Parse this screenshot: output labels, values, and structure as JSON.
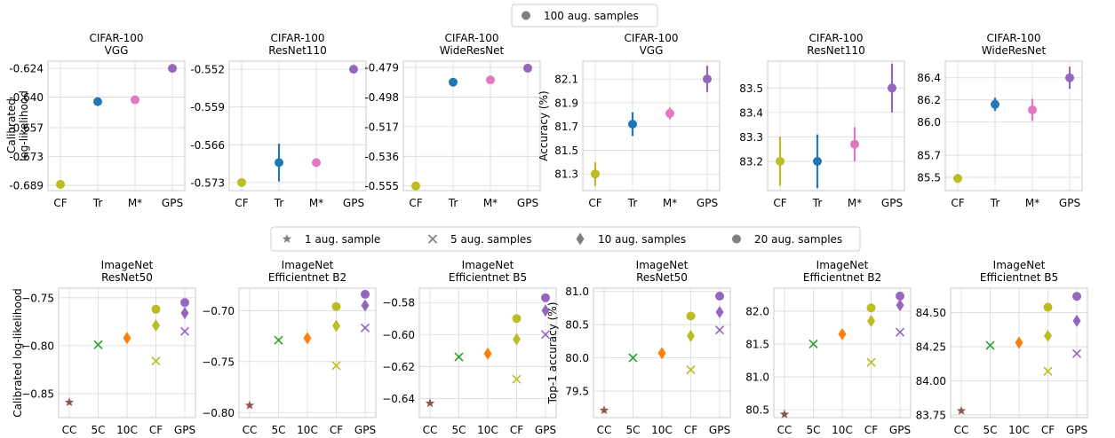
{
  "legend_top": {
    "entries": [
      {
        "label": "100 aug. samples",
        "marker": "circle",
        "color": "#7f7f7f"
      }
    ]
  },
  "legend_mid": {
    "entries": [
      {
        "label": "1 aug. sample",
        "marker": "star",
        "color": "#7f7f7f"
      },
      {
        "label": "5 aug. samples",
        "marker": "x",
        "color": "#7f7f7f"
      },
      {
        "label": "10 aug. samples",
        "marker": "diamond",
        "color": "#7f7f7f"
      },
      {
        "label": "20 aug. samples",
        "marker": "circle",
        "color": "#7f7f7f"
      }
    ]
  },
  "colors": {
    "CF": "#bcbd22",
    "Tr": "#1f77b4",
    "M*": "#e377c2",
    "GPS": "#9467bd",
    "CC": "#8c564b",
    "5C": "#2ca02c",
    "10C": "#ff7f0e",
    "grid": "#d9d9d9"
  },
  "chart_data": [
    {
      "type": "scatter",
      "title": "CIFAR-100",
      "subtitle": "VGG",
      "ylabel": "Calibrated\nlog-likelihood",
      "categories": [
        "CF",
        "Tr",
        "M*",
        "GPS"
      ],
      "yticks": [
        -0.689,
        -0.673,
        -0.657,
        -0.64,
        -0.624
      ],
      "yticklabels": [
        "-0.689",
        "-0.673",
        "-0.657",
        "-0.640",
        "-0.624"
      ],
      "ylim": [
        -0.692,
        -0.62
      ],
      "points": [
        {
          "x": "CF",
          "y": -0.6885,
          "err": 0,
          "marker": "circle",
          "color": "CF"
        },
        {
          "x": "Tr",
          "y": -0.6425,
          "err": 0.002,
          "marker": "circle",
          "color": "Tr"
        },
        {
          "x": "M*",
          "y": -0.6415,
          "err": 0,
          "marker": "circle",
          "color": "M*"
        },
        {
          "x": "GPS",
          "y": -0.624,
          "err": 0,
          "marker": "circle",
          "color": "GPS"
        }
      ]
    },
    {
      "type": "scatter",
      "title": "CIFAR-100",
      "subtitle": "ResNet110",
      "ylabel": "",
      "categories": [
        "CF",
        "Tr",
        "M*",
        "GPS"
      ],
      "yticks": [
        -0.573,
        -0.566,
        -0.559,
        -0.552
      ],
      "yticklabels": [
        "-0.573",
        "-0.566",
        "-0.559",
        "-0.552"
      ],
      "ylim": [
        -0.5745,
        -0.5505
      ],
      "points": [
        {
          "x": "CF",
          "y": -0.573,
          "err": 0,
          "marker": "circle",
          "color": "CF"
        },
        {
          "x": "Tr",
          "y": -0.5693,
          "err": 0.0035,
          "marker": "circle",
          "color": "Tr"
        },
        {
          "x": "M*",
          "y": -0.5693,
          "err": 0,
          "marker": "circle",
          "color": "M*"
        },
        {
          "x": "GPS",
          "y": -0.552,
          "err": 0,
          "marker": "circle",
          "color": "GPS"
        }
      ]
    },
    {
      "type": "scatter",
      "title": "CIFAR-100",
      "subtitle": "WideResNet",
      "ylabel": "",
      "categories": [
        "CF",
        "Tr",
        "M*",
        "GPS"
      ],
      "yticks": [
        -0.555,
        -0.536,
        -0.517,
        -0.498,
        -0.479
      ],
      "yticklabels": [
        "-0.555",
        "-0.536",
        "-0.517",
        "-0.498",
        "-0.479"
      ],
      "ylim": [
        -0.558,
        -0.475
      ],
      "points": [
        {
          "x": "CF",
          "y": -0.555,
          "err": 0,
          "marker": "circle",
          "color": "CF"
        },
        {
          "x": "Tr",
          "y": -0.4885,
          "err": 0,
          "marker": "circle",
          "color": "Tr"
        },
        {
          "x": "M*",
          "y": -0.487,
          "err": 0,
          "marker": "circle",
          "color": "M*"
        },
        {
          "x": "GPS",
          "y": -0.4795,
          "err": 0,
          "marker": "circle",
          "color": "GPS"
        }
      ]
    },
    {
      "type": "scatter",
      "title": "CIFAR-100",
      "subtitle": "VGG",
      "ylabel": "Accuracy (%)",
      "categories": [
        "CF",
        "Tr",
        "M*",
        "GPS"
      ],
      "yticks": [
        81.3,
        81.5,
        81.7,
        81.9,
        82.1
      ],
      "yticklabels": [
        "81.3",
        "81.5",
        "81.7",
        "81.9",
        "82.1"
      ],
      "ylim": [
        81.16,
        82.25
      ],
      "points": [
        {
          "x": "CF",
          "y": 81.3,
          "err": 0.1,
          "marker": "circle",
          "color": "CF"
        },
        {
          "x": "Tr",
          "y": 81.72,
          "err": 0.1,
          "marker": "circle",
          "color": "Tr"
        },
        {
          "x": "M*",
          "y": 81.81,
          "err": 0.05,
          "marker": "circle",
          "color": "M*"
        },
        {
          "x": "GPS",
          "y": 82.1,
          "err": 0.11,
          "marker": "circle",
          "color": "GPS"
        }
      ]
    },
    {
      "type": "scatter",
      "title": "CIFAR-100",
      "subtitle": "ResNet110",
      "ylabel": "",
      "categories": [
        "CF",
        "Tr",
        "M*",
        "GPS"
      ],
      "yticks": [
        83.2,
        83.3,
        83.4,
        83.5
      ],
      "yticklabels": [
        "83.2",
        "83.3",
        "83.4",
        "83.5"
      ],
      "ylim": [
        83.08,
        83.61
      ],
      "points": [
        {
          "x": "CF",
          "y": 83.2,
          "err": 0.1,
          "marker": "circle",
          "color": "CF"
        },
        {
          "x": "Tr",
          "y": 83.2,
          "err": 0.11,
          "marker": "circle",
          "color": "Tr"
        },
        {
          "x": "M*",
          "y": 83.27,
          "err": 0.07,
          "marker": "circle",
          "color": "M*"
        },
        {
          "x": "GPS",
          "y": 83.5,
          "err": 0.1,
          "marker": "circle",
          "color": "GPS"
        }
      ]
    },
    {
      "type": "scatter",
      "title": "CIFAR-100",
      "subtitle": "WideResNet",
      "ylabel": "",
      "categories": [
        "CF",
        "Tr",
        "M*",
        "GPS"
      ],
      "yticks": [
        85.5,
        85.7,
        86.0,
        86.2,
        86.4
      ],
      "yticklabels": [
        "85.5",
        "85.7",
        "86.0",
        "86.2",
        "86.4"
      ],
      "ylim": [
        85.38,
        86.55
      ],
      "points": [
        {
          "x": "CF",
          "y": 85.49,
          "err": 0.04,
          "marker": "circle",
          "color": "CF"
        },
        {
          "x": "Tr",
          "y": 86.16,
          "err": 0.06,
          "marker": "circle",
          "color": "Tr"
        },
        {
          "x": "M*",
          "y": 86.11,
          "err": 0.1,
          "marker": "circle",
          "color": "M*"
        },
        {
          "x": "GPS",
          "y": 86.4,
          "err": 0.1,
          "marker": "circle",
          "color": "GPS"
        }
      ]
    },
    {
      "type": "scatter",
      "title": "ImageNet",
      "subtitle": "ResNet50",
      "ylabel": "Calibrated log-likelihood",
      "categories": [
        "CC",
        "5C",
        "10C",
        "CF",
        "GPS"
      ],
      "yticks": [
        -0.85,
        -0.8,
        -0.75
      ],
      "yticklabels": [
        "−0.85",
        "−0.80",
        "−0.75"
      ],
      "ylim": [
        -0.875,
        -0.74
      ],
      "points": [
        {
          "x": "CC",
          "y": -0.859,
          "marker": "star",
          "color": "CC"
        },
        {
          "x": "5C",
          "y": -0.799,
          "marker": "x",
          "color": "5C"
        },
        {
          "x": "10C",
          "y": -0.792,
          "marker": "diamond",
          "color": "10C"
        },
        {
          "x": "CF",
          "y": -0.816,
          "marker": "x",
          "color": "CF"
        },
        {
          "x": "CF",
          "y": -0.779,
          "marker": "diamond",
          "color": "CF"
        },
        {
          "x": "CF",
          "y": -0.762,
          "marker": "circle",
          "color": "CF"
        },
        {
          "x": "GPS",
          "y": -0.785,
          "marker": "x",
          "color": "GPS"
        },
        {
          "x": "GPS",
          "y": -0.766,
          "marker": "diamond",
          "color": "GPS"
        },
        {
          "x": "GPS",
          "y": -0.755,
          "marker": "circle",
          "color": "GPS"
        }
      ]
    },
    {
      "type": "scatter",
      "title": "ImageNet",
      "subtitle": "Efficientnet B2",
      "ylabel": "",
      "categories": [
        "CC",
        "5C",
        "10C",
        "CF",
        "GPS"
      ],
      "yticks": [
        -0.8,
        -0.75,
        -0.7
      ],
      "yticklabels": [
        "−0.80",
        "−0.75",
        "−0.70"
      ],
      "ylim": [
        -0.805,
        -0.678
      ],
      "points": [
        {
          "x": "CC",
          "y": -0.793,
          "marker": "star",
          "color": "CC"
        },
        {
          "x": "5C",
          "y": -0.729,
          "marker": "x",
          "color": "5C"
        },
        {
          "x": "10C",
          "y": -0.727,
          "marker": "diamond",
          "color": "10C"
        },
        {
          "x": "CF",
          "y": -0.754,
          "marker": "x",
          "color": "CF"
        },
        {
          "x": "CF",
          "y": -0.715,
          "marker": "diamond",
          "color": "CF"
        },
        {
          "x": "CF",
          "y": -0.696,
          "marker": "circle",
          "color": "CF"
        },
        {
          "x": "GPS",
          "y": -0.717,
          "marker": "x",
          "color": "GPS"
        },
        {
          "x": "GPS",
          "y": -0.695,
          "marker": "diamond",
          "color": "GPS"
        },
        {
          "x": "GPS",
          "y": -0.684,
          "marker": "circle",
          "color": "GPS"
        }
      ]
    },
    {
      "type": "scatter",
      "title": "ImageNet",
      "subtitle": "Efficientnet B5",
      "ylabel": "",
      "categories": [
        "CC",
        "5C",
        "10C",
        "CF",
        "GPS"
      ],
      "yticks": [
        -0.64,
        -0.62,
        -0.6,
        -0.58
      ],
      "yticklabels": [
        "−0.64",
        "−0.62",
        "−0.60",
        "−0.58"
      ],
      "ylim": [
        -0.652,
        -0.571
      ],
      "points": [
        {
          "x": "CC",
          "y": -0.643,
          "marker": "star",
          "color": "CC"
        },
        {
          "x": "5C",
          "y": -0.614,
          "marker": "x",
          "color": "5C"
        },
        {
          "x": "10C",
          "y": -0.612,
          "marker": "diamond",
          "color": "10C"
        },
        {
          "x": "CF",
          "y": -0.628,
          "marker": "x",
          "color": "CF"
        },
        {
          "x": "CF",
          "y": -0.603,
          "marker": "diamond",
          "color": "CF"
        },
        {
          "x": "CF",
          "y": -0.59,
          "marker": "circle",
          "color": "CF"
        },
        {
          "x": "GPS",
          "y": -0.6,
          "marker": "x",
          "color": "GPS"
        },
        {
          "x": "GPS",
          "y": -0.585,
          "marker": "diamond",
          "color": "GPS"
        },
        {
          "x": "GPS",
          "y": -0.577,
          "marker": "circle",
          "color": "GPS"
        }
      ]
    },
    {
      "type": "scatter",
      "title": "ImageNet",
      "subtitle": "ResNet50",
      "ylabel": "Top-1 accuracy (%)",
      "categories": [
        "CC",
        "5C",
        "10C",
        "CF",
        "GPS"
      ],
      "yticks": [
        79.5,
        80.0,
        80.5,
        81.0
      ],
      "yticklabels": [
        "79.5",
        "80.0",
        "80.5",
        "81.0"
      ],
      "ylim": [
        79.1,
        81.05
      ],
      "points": [
        {
          "x": "CC",
          "y": 79.21,
          "marker": "star",
          "color": "CC"
        },
        {
          "x": "5C",
          "y": 80.0,
          "marker": "x",
          "color": "5C"
        },
        {
          "x": "10C",
          "y": 80.07,
          "marker": "diamond",
          "color": "10C"
        },
        {
          "x": "CF",
          "y": 79.82,
          "marker": "x",
          "color": "CF"
        },
        {
          "x": "CF",
          "y": 80.33,
          "marker": "diamond",
          "color": "CF"
        },
        {
          "x": "CF",
          "y": 80.63,
          "marker": "circle",
          "color": "CF"
        },
        {
          "x": "GPS",
          "y": 80.42,
          "marker": "x",
          "color": "GPS"
        },
        {
          "x": "GPS",
          "y": 80.69,
          "marker": "diamond",
          "color": "GPS"
        },
        {
          "x": "GPS",
          "y": 80.93,
          "marker": "circle",
          "color": "GPS"
        }
      ]
    },
    {
      "type": "scatter",
      "title": "ImageNet",
      "subtitle": "Efficientnet B2",
      "ylabel": "",
      "categories": [
        "CC",
        "5C",
        "10C",
        "CF",
        "GPS"
      ],
      "yticks": [
        80.5,
        81.0,
        81.5,
        82.0
      ],
      "yticklabels": [
        "80.5",
        "81.0",
        "81.5",
        "82.0"
      ],
      "ylim": [
        80.38,
        82.35
      ],
      "points": [
        {
          "x": "CC",
          "y": 80.43,
          "marker": "star",
          "color": "CC"
        },
        {
          "x": "5C",
          "y": 81.5,
          "marker": "x",
          "color": "5C"
        },
        {
          "x": "10C",
          "y": 81.65,
          "marker": "diamond",
          "color": "10C"
        },
        {
          "x": "CF",
          "y": 81.22,
          "marker": "x",
          "color": "CF"
        },
        {
          "x": "CF",
          "y": 81.85,
          "marker": "diamond",
          "color": "CF"
        },
        {
          "x": "CF",
          "y": 82.05,
          "marker": "circle",
          "color": "CF"
        },
        {
          "x": "GPS",
          "y": 81.68,
          "marker": "x",
          "color": "GPS"
        },
        {
          "x": "GPS",
          "y": 82.09,
          "marker": "diamond",
          "color": "GPS"
        },
        {
          "x": "GPS",
          "y": 82.23,
          "marker": "circle",
          "color": "GPS"
        }
      ]
    },
    {
      "type": "scatter",
      "title": "ImageNet",
      "subtitle": "Efficientnet B5",
      "ylabel": "",
      "categories": [
        "CC",
        "5C",
        "10C",
        "CF",
        "GPS"
      ],
      "yticks": [
        83.75,
        84.0,
        84.25,
        84.5
      ],
      "yticklabels": [
        "83.75",
        "84.00",
        "84.25",
        "84.50"
      ],
      "ylim": [
        83.73,
        84.68
      ],
      "points": [
        {
          "x": "CC",
          "y": 83.78,
          "marker": "star",
          "color": "CC"
        },
        {
          "x": "5C",
          "y": 84.26,
          "marker": "x",
          "color": "5C"
        },
        {
          "x": "10C",
          "y": 84.28,
          "marker": "diamond",
          "color": "10C"
        },
        {
          "x": "CF",
          "y": 84.07,
          "marker": "x",
          "color": "CF"
        },
        {
          "x": "CF",
          "y": 84.33,
          "marker": "diamond",
          "color": "CF"
        },
        {
          "x": "CF",
          "y": 84.54,
          "marker": "circle",
          "color": "CF"
        },
        {
          "x": "GPS",
          "y": 84.2,
          "marker": "x",
          "color": "GPS"
        },
        {
          "x": "GPS",
          "y": 84.44,
          "marker": "diamond",
          "color": "GPS"
        },
        {
          "x": "GPS",
          "y": 84.62,
          "marker": "circle",
          "color": "GPS"
        }
      ]
    }
  ]
}
